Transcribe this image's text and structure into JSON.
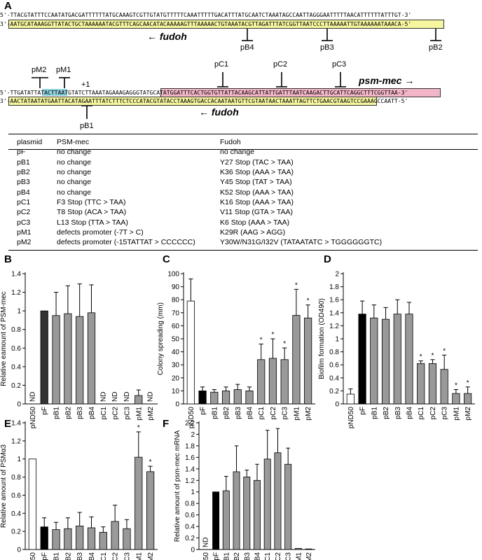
{
  "panel_a": {
    "letter": "A",
    "seq1_top": "5'-TTACGTATTTCCAATATGACGATTTTTTATGCAAAGTCGTTGTATGTTTTTCAAATTTTTGACATTTATGCAATCTAAATAGCCAATTAGGGAATTTTTAACATTTTTTATTTGT-3'",
    "seq1_bottom": "3'-AATGCATAAAGGTTATACTGCTAAAAAATACGTTTCAGCAACATACAAAAAGTTTAAAAACTGTAAATACGTTAGATTTATCGGTTAATCCCTTAAAAATTGTAAAAAATAAACA-5'",
    "seq2_top": "5'-TTGATATTATACTTAATGTATCTTAAATAGAAAGAGGGTATGCATATGGATTTCACTGGTGTTATTACAAGCATTATTGATTTAATCAAGACTTGCATTCAGGCTTTCGGTTAA-3'",
    "seq2_bottom": "3'-AACTATAATATGAATTACATAGAATTTATCTTTCTCCCATACGTATACCTAAAGTGACCACAATAATGTTCGTAATAACTAAATTAGTTCTGAACGTAAGTCCGAAAGCCAATT-5'",
    "fudoh_label": "fudoh",
    "psm_label": "psm-mec",
    "plus_one": "+1",
    "markers": [
      "pB4",
      "pB3",
      "pB2",
      "pB1",
      "pM2",
      "pM1",
      "pC1",
      "pC2",
      "pC3"
    ],
    "table": {
      "headers": [
        "plasmid",
        "PSM-mec",
        "Fudoh"
      ],
      "rows": [
        [
          "pF",
          "no change",
          "no change"
        ],
        [
          "pB1",
          "no change",
          "Y27 Stop (TAC > TAA)"
        ],
        [
          "pB2",
          "no change",
          "K36 Stop (AAA > TAA)"
        ],
        [
          "pB3",
          "no change",
          "Y45 Stop (TAT > TAA)"
        ],
        [
          "pB4",
          "no change",
          "K52 Stop (AAA > TAA)"
        ],
        [
          "pC1",
          "F3 Stop (TTC > TAA)",
          "K16 Stop (AAA > TAA)"
        ],
        [
          "pC2",
          "T8 Stop (ACA > TAA)",
          "V11 Stop (GTA > TAA)"
        ],
        [
          "pC3",
          "L13 Stop (TTA > TAA)",
          "K6 Stop (AAA > TAA)"
        ],
        [
          "pM1",
          "defects promoter (-7T > C)",
          "K29R (AAG > AGG)"
        ],
        [
          "pM2",
          "defects promoter (-15TATTAT > CCCCCC)",
          "Y30W/N31G/I32V (TATAATATC > TGGGGGGTC)"
        ]
      ]
    }
  },
  "chart_data": [
    {
      "panel": "B",
      "type": "bar",
      "ylabel": "Relative eamount of PSM-mec",
      "ylim": [
        0,
        1.4
      ],
      "yticks": [
        0,
        0.2,
        0.4,
        0.6,
        0.8,
        1,
        1.2,
        1.4
      ],
      "categories": [
        "pND50",
        "pF",
        "pB1",
        "pB2",
        "pB3",
        "pB4",
        "pC1",
        "pC2",
        "pC3",
        "pM1",
        "pM2"
      ],
      "values": [
        null,
        1.0,
        0.95,
        0.97,
        0.94,
        0.98,
        null,
        null,
        null,
        0.09,
        null
      ],
      "errors": [
        null,
        0,
        0.25,
        0.3,
        0.35,
        0.3,
        null,
        null,
        null,
        0.06,
        null
      ],
      "nd": [
        true,
        false,
        false,
        false,
        false,
        false,
        true,
        true,
        true,
        false,
        true
      ],
      "sig": [
        false,
        false,
        false,
        false,
        false,
        false,
        false,
        false,
        false,
        false,
        false
      ],
      "colors": [
        "#ffffff",
        "#333333",
        "#999999",
        "#999999",
        "#999999",
        "#999999",
        "#999999",
        "#999999",
        "#999999",
        "#999999",
        "#999999"
      ]
    },
    {
      "panel": "C",
      "type": "bar",
      "ylabel": "Colony spreading (mm)",
      "ylim": [
        0,
        100
      ],
      "yticks": [
        0,
        10,
        20,
        30,
        40,
        50,
        60,
        70,
        80,
        90,
        100
      ],
      "categories": [
        "pND50",
        "pF",
        "pB1",
        "pB2",
        "pB3",
        "pB4",
        "pC1",
        "pC2",
        "pC3",
        "pM1",
        "pM2"
      ],
      "values": [
        79,
        10,
        9,
        10,
        11,
        10,
        34,
        35,
        34,
        68,
        66
      ],
      "errors": [
        17,
        3,
        2,
        3,
        4,
        3,
        12,
        15,
        9,
        20,
        10
      ],
      "nd": [
        false,
        false,
        false,
        false,
        false,
        false,
        false,
        false,
        false,
        false,
        false
      ],
      "sig": [
        false,
        false,
        false,
        false,
        false,
        false,
        true,
        true,
        true,
        true,
        true
      ],
      "colors": [
        "#ffffff",
        "#000000",
        "#999999",
        "#999999",
        "#999999",
        "#999999",
        "#999999",
        "#999999",
        "#999999",
        "#999999",
        "#999999"
      ]
    },
    {
      "panel": "D",
      "type": "bar",
      "ylabel": "Biofilm formation (OD490)",
      "ylim": [
        0,
        2
      ],
      "yticks": [
        0,
        0.2,
        0.4,
        0.6,
        0.8,
        1,
        1.2,
        1.4,
        1.6,
        1.8,
        2
      ],
      "categories": [
        "pND50",
        "pF",
        "pB1",
        "pB2",
        "pB3",
        "pB4",
        "pC1",
        "pC2",
        "pC3",
        "pM1",
        "pM2"
      ],
      "values": [
        0.15,
        1.38,
        1.32,
        1.3,
        1.38,
        1.38,
        0.62,
        0.62,
        0.53,
        0.16,
        0.16
      ],
      "errors": [
        0.08,
        0.2,
        0.2,
        0.18,
        0.22,
        0.18,
        0.04,
        0.06,
        0.22,
        0.06,
        0.1
      ],
      "nd": [
        false,
        false,
        false,
        false,
        false,
        false,
        false,
        false,
        false,
        false,
        false
      ],
      "sig": [
        false,
        false,
        false,
        false,
        false,
        false,
        true,
        true,
        true,
        true,
        true
      ],
      "colors": [
        "#ffffff",
        "#000000",
        "#999999",
        "#999999",
        "#999999",
        "#999999",
        "#999999",
        "#999999",
        "#999999",
        "#999999",
        "#999999"
      ]
    },
    {
      "panel": "E",
      "type": "bar",
      "ylabel": "Relative amount of PSMα3",
      "ylim": [
        0,
        1.4
      ],
      "yticks": [
        0,
        0.2,
        0.4,
        0.6,
        0.8,
        1,
        1.2,
        1.4
      ],
      "categories": [
        "pND50",
        "pF",
        "pB1",
        "pB2",
        "pB3",
        "pB4",
        "pC1",
        "pC2",
        "pC3",
        "pM1",
        "pM2"
      ],
      "values": [
        1.0,
        0.25,
        0.22,
        0.23,
        0.26,
        0.24,
        0.19,
        0.31,
        0.23,
        1.02,
        0.86
      ],
      "errors": [
        0,
        0.1,
        0.08,
        0.12,
        0.15,
        0.12,
        0.06,
        0.18,
        0.1,
        0.28,
        0.06
      ],
      "nd": [
        false,
        false,
        false,
        false,
        false,
        false,
        false,
        false,
        false,
        false,
        false
      ],
      "sig": [
        false,
        false,
        false,
        false,
        false,
        false,
        false,
        false,
        false,
        true,
        true
      ],
      "colors": [
        "#ffffff",
        "#000000",
        "#999999",
        "#999999",
        "#999999",
        "#999999",
        "#999999",
        "#999999",
        "#999999",
        "#999999",
        "#999999"
      ]
    },
    {
      "panel": "F",
      "type": "bar",
      "ylabel": "Relative amount of psm-mec mRNA",
      "ylim": [
        0,
        2.2
      ],
      "yticks": [
        0,
        0.2,
        0.4,
        0.6,
        0.8,
        1,
        1.2,
        1.4,
        1.6,
        1.8,
        2,
        2.2
      ],
      "categories": [
        "pND50",
        "pF",
        "pB1",
        "pB2",
        "pB3",
        "pB4",
        "pC1",
        "pC2",
        "pC3",
        "pM1",
        "pM2"
      ],
      "values": [
        null,
        1.0,
        1.02,
        1.35,
        1.26,
        1.2,
        1.57,
        1.68,
        1.48,
        0.02,
        0.01
      ],
      "errors": [
        null,
        0,
        0.25,
        0.45,
        0.12,
        0.28,
        0.5,
        0.42,
        0.28,
        0,
        0
      ],
      "nd": [
        true,
        false,
        false,
        false,
        false,
        false,
        false,
        false,
        false,
        false,
        false
      ],
      "sig": [
        false,
        false,
        false,
        false,
        false,
        false,
        false,
        false,
        false,
        false,
        false
      ],
      "colors": [
        "#ffffff",
        "#000000",
        "#999999",
        "#999999",
        "#999999",
        "#999999",
        "#999999",
        "#999999",
        "#999999",
        "#999999",
        "#999999"
      ]
    }
  ]
}
